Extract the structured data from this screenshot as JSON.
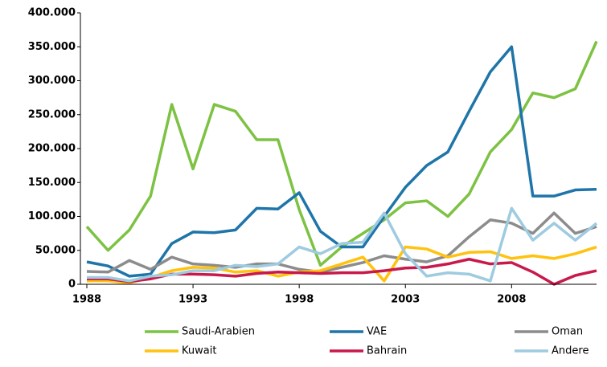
{
  "chart_data": {
    "type": "line",
    "x": [
      1988,
      1989,
      1990,
      1991,
      1992,
      1993,
      1994,
      1995,
      1996,
      1997,
      1998,
      1999,
      2000,
      2001,
      2002,
      2003,
      2004,
      2005,
      2006,
      2007,
      2008,
      2009,
      2010,
      2011,
      2012
    ],
    "series": [
      {
        "name": "Saudi-Arabien",
        "color": "#7dc243",
        "values": [
          85000,
          50000,
          80000,
          130000,
          265000,
          170000,
          265000,
          255000,
          213000,
          213000,
          110000,
          28000,
          55000,
          75000,
          95000,
          120000,
          123000,
          100000,
          133000,
          195000,
          228000,
          282000,
          275000,
          288000,
          358000
        ]
      },
      {
        "name": "VAE",
        "color": "#1f75a8",
        "values": [
          33000,
          27000,
          12000,
          15000,
          60000,
          77000,
          76000,
          80000,
          112000,
          111000,
          135000,
          78000,
          55000,
          55000,
          100000,
          143000,
          175000,
          195000,
          255000,
          313000,
          350000,
          130000,
          130000,
          139000,
          140000
        ]
      },
      {
        "name": "Oman",
        "color": "#8c8c8c",
        "values": [
          19000,
          18000,
          35000,
          22000,
          40000,
          30000,
          28000,
          25000,
          30000,
          30000,
          22000,
          18000,
          25000,
          32000,
          42000,
          37000,
          33000,
          42000,
          70000,
          95000,
          90000,
          75000,
          105000,
          75000,
          85000
        ]
      },
      {
        "name": "Kuwait",
        "color": "#ffc20e",
        "values": [
          5000,
          5000,
          2000,
          10000,
          20000,
          25000,
          24000,
          18000,
          20000,
          12000,
          18000,
          20000,
          30000,
          40000,
          5000,
          55000,
          52000,
          40000,
          47000,
          48000,
          38000,
          42000,
          38000,
          45000,
          55000
        ]
      },
      {
        "name": "Bahrain",
        "color": "#c8194a",
        "values": [
          8000,
          8000,
          4000,
          8000,
          15000,
          15000,
          14000,
          12000,
          16000,
          18000,
          17000,
          16000,
          17000,
          17000,
          20000,
          24000,
          25000,
          30000,
          37000,
          30000,
          32000,
          18000,
          0,
          13000,
          20000
        ]
      },
      {
        "name": "Andere",
        "color": "#9fcbe0",
        "values": [
          10000,
          10000,
          5000,
          12000,
          14000,
          20000,
          20000,
          28000,
          26000,
          30000,
          55000,
          45000,
          60000,
          62000,
          105000,
          45000,
          12000,
          17000,
          15000,
          5000,
          112000,
          65000,
          90000,
          65000,
          90000
        ]
      }
    ],
    "xlim": [
      1988,
      2012
    ],
    "xticks": [
      1988,
      1993,
      1998,
      2003,
      2008
    ],
    "ylim": [
      0,
      400000
    ],
    "yticks": [
      0,
      {
        "value": 50000,
        "label": "50.000"
      },
      {
        "value": 100000,
        "label": "100.000"
      },
      {
        "value": 150000,
        "label": "150.000"
      },
      {
        "value": 200000,
        "label": "200.000"
      },
      {
        "value": 250000,
        "label": "250.000"
      },
      {
        "value": 300000,
        "label": "300.000"
      },
      {
        "value": 350000,
        "label": "350.000"
      },
      {
        "value": 400000,
        "label": "400.000"
      }
    ],
    "grid": false
  }
}
